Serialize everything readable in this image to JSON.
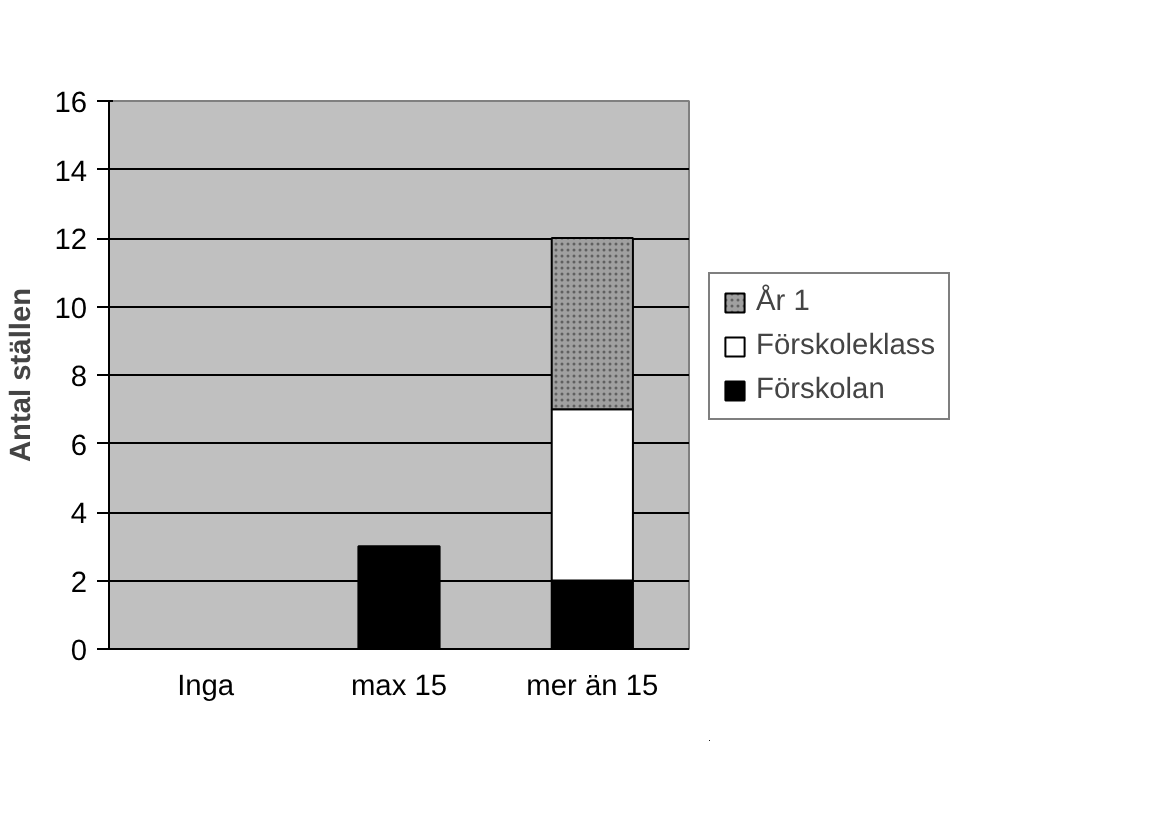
{
  "chart_data": {
    "type": "bar",
    "stacked": true,
    "ylabel": "Antal ställen",
    "categories": [
      "Inga",
      "max 15",
      "mer än 15"
    ],
    "series": [
      {
        "name": "Förskolan",
        "color": "#000000",
        "values": [
          0,
          3,
          2
        ]
      },
      {
        "name": "Förskoleklass",
        "color": "#ffffff",
        "values": [
          0,
          0,
          5
        ]
      },
      {
        "name": "År 1",
        "color": "#a0a0a0",
        "values": [
          0,
          0,
          5
        ]
      }
    ],
    "ylim": [
      0,
      16
    ],
    "yticks": [
      0,
      2,
      4,
      6,
      8,
      10,
      12,
      14,
      16
    ],
    "grid": "y",
    "legend": "right"
  }
}
